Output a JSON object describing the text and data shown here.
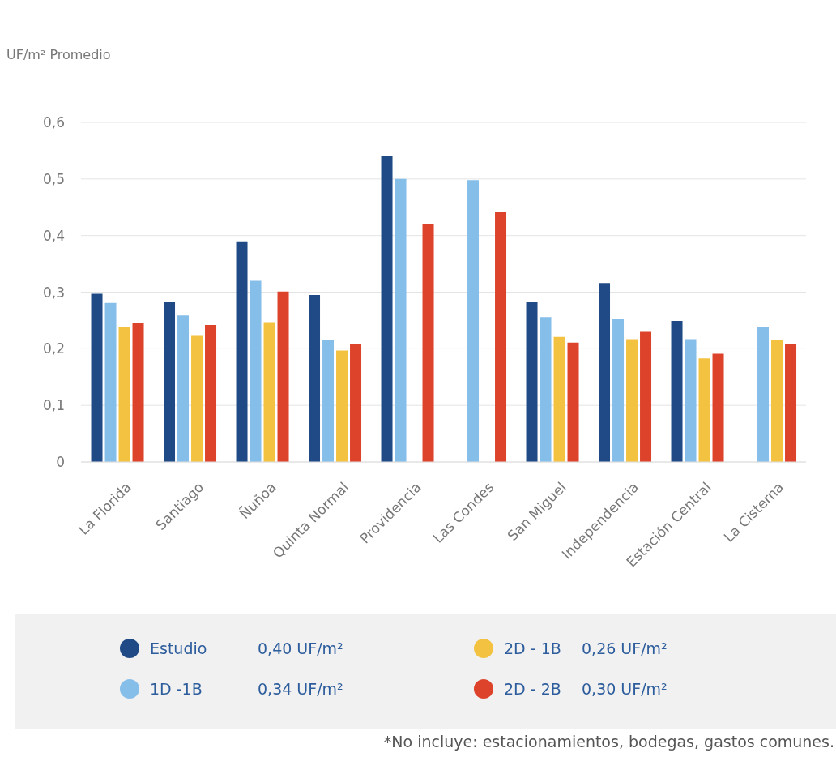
{
  "chart_data": {
    "type": "bar",
    "ylabel": "UF/m² Promedio",
    "categories": [
      "La Florida",
      "Santiago",
      "Ñuñoa",
      "Quinta Normal",
      "Providencia",
      "Las Condes",
      "San Miguel",
      "Independencia",
      "Estación Central",
      "La Cisterna"
    ],
    "series": [
      {
        "name": "Estudio",
        "color": "#1f4a85",
        "values": [
          0.297,
          0.283,
          0.39,
          0.295,
          0.541,
          null,
          0.283,
          0.316,
          0.249,
          null
        ]
      },
      {
        "name": "1D -1B",
        "color": "#86beea",
        "values": [
          0.281,
          0.259,
          0.32,
          0.215,
          0.5,
          0.498,
          0.256,
          0.252,
          0.217,
          0.239
        ]
      },
      {
        "name": "2D - 1B",
        "color": "#f3c241",
        "values": [
          0.238,
          0.224,
          0.247,
          0.197,
          null,
          null,
          0.221,
          0.217,
          0.183,
          0.215
        ]
      },
      {
        "name": "2D - 2B",
        "color": "#dd432b",
        "values": [
          0.245,
          0.242,
          0.301,
          0.208,
          0.421,
          0.441,
          0.211,
          0.23,
          0.191,
          0.208
        ]
      }
    ],
    "ylim": [
      0,
      0.6
    ],
    "yticks": [
      0,
      {
        "value": 0.1,
        "label": "0,1"
      },
      {
        "value": 0.2,
        "label": "0,2"
      },
      {
        "value": 0.3,
        "label": "0,3"
      },
      {
        "value": 0.4,
        "label": "0,4"
      },
      {
        "value": 0.5,
        "label": "0,5"
      },
      {
        "value": 0.6,
        "label": "0,6"
      }
    ],
    "grid": "y",
    "legend": "bottom",
    "annotations": [
      "0,40 UF/m²",
      "0,34 UF/m²",
      "0,26 UF/m²",
      "0,30 UF/m²",
      "*No incluye: estacionamientos, bodegas, gastos comunes."
    ]
  }
}
